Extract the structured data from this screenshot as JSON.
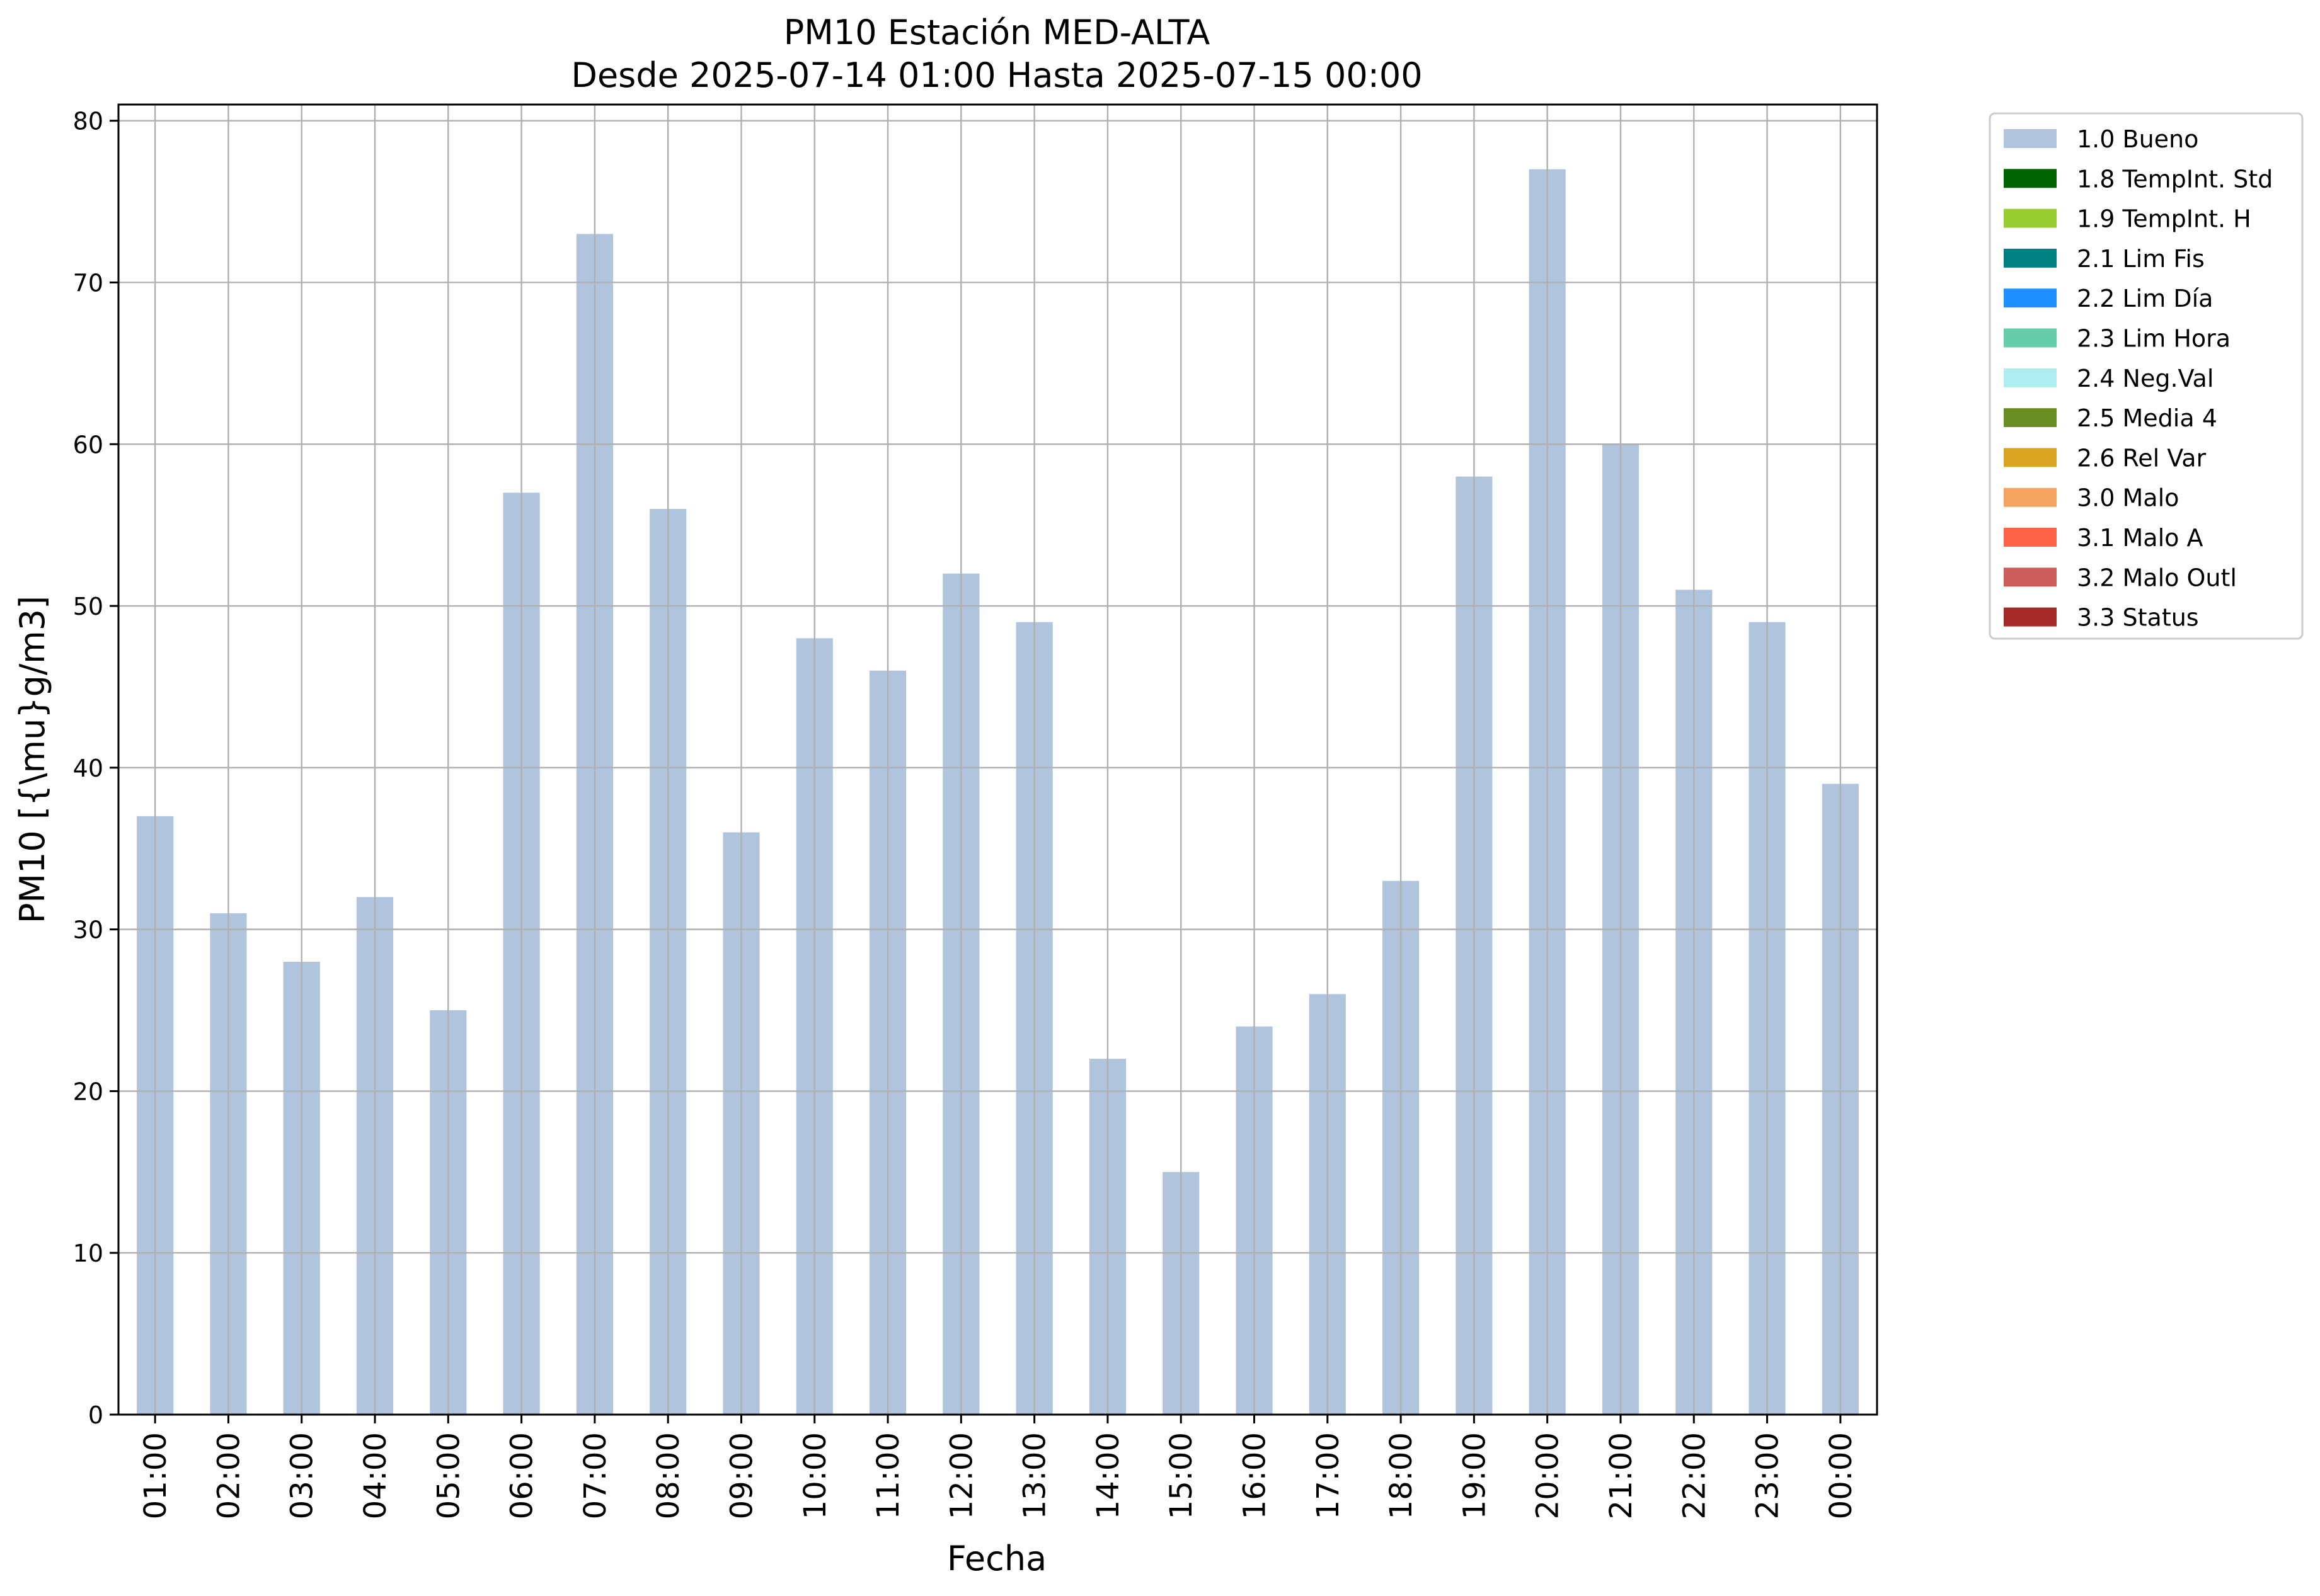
{
  "chart_data": {
    "type": "bar",
    "title": "PM10 Estación MED-ALTA",
    "subtitle": "Desde 2025-07-14 01:00 Hasta 2025-07-15 00:00",
    "xlabel": "Fecha",
    "ylabel": "PM10 [{\\mu}g/m3]",
    "categories": [
      "01:00",
      "02:00",
      "03:00",
      "04:00",
      "05:00",
      "06:00",
      "07:00",
      "08:00",
      "09:00",
      "10:00",
      "11:00",
      "12:00",
      "13:00",
      "14:00",
      "15:00",
      "16:00",
      "17:00",
      "18:00",
      "19:00",
      "20:00",
      "21:00",
      "22:00",
      "23:00",
      "00:00"
    ],
    "series": [
      {
        "name": "1.0 Bueno",
        "color": "#b0c4de",
        "values": [
          37,
          31,
          28,
          32,
          25,
          57,
          73,
          56,
          36,
          48,
          46,
          52,
          49,
          22,
          15,
          24,
          26,
          33,
          58,
          77,
          60,
          51,
          49,
          39
        ]
      }
    ],
    "ylim": [
      0,
      81
    ],
    "yticks": [
      0,
      10,
      20,
      30,
      40,
      50,
      60,
      70,
      80
    ],
    "grid": true,
    "legend_position": "outside-right-top",
    "legend": [
      {
        "label": "1.0 Bueno",
        "color": "#b0c4de"
      },
      {
        "label": "1.8 TempInt. Std",
        "color": "#006400"
      },
      {
        "label": "1.9 TempInt. H",
        "color": "#9acd32"
      },
      {
        "label": "2.1 Lim Fis",
        "color": "#008080"
      },
      {
        "label": "2.2 Lim Día",
        "color": "#1e90ff"
      },
      {
        "label": "2.3 Lim Hora",
        "color": "#66cdaa"
      },
      {
        "label": "2.4 Neg.Val",
        "color": "#afeeee"
      },
      {
        "label": "2.5 Media 4",
        "color": "#6b8e23"
      },
      {
        "label": "2.6 Rel Var",
        "color": "#daa520"
      },
      {
        "label": "3.0 Malo",
        "color": "#f4a460"
      },
      {
        "label": "3.1 Malo A",
        "color": "#ff6347"
      },
      {
        "label": "3.2 Malo Outl",
        "color": "#cd5c5c"
      },
      {
        "label": "3.3 Status",
        "color": "#a52a2a"
      }
    ]
  }
}
